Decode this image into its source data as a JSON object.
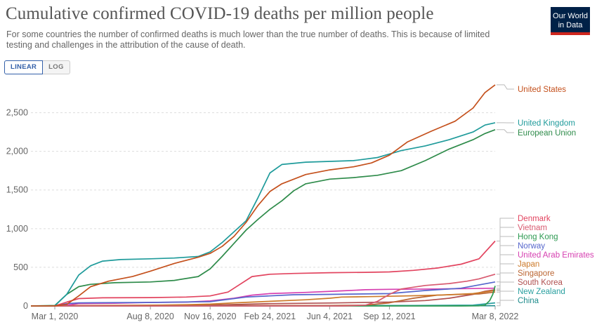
{
  "header": {
    "title": "Cumulative confirmed COVID-19 deaths per million people",
    "subtitle": "For some countries the number of confirmed deaths is much lower than the true number of deaths. This is because of limited testing and challenges in the attribution of the cause of death.",
    "logo_line1": "Our World",
    "logo_line2": "in Data"
  },
  "controls": {
    "linear_label": "LINEAR",
    "log_label": "LOG",
    "selected": "LINEAR"
  },
  "colors": {
    "United States": "#c4501c",
    "United Kingdom": "#1f9b9b",
    "European Union": "#2e8b4a",
    "Denmark": "#e2445f",
    "Vietnam": "#d85a70",
    "Hong Kong": "#2e9a52",
    "Norway": "#5566cc",
    "United Arab Emirates": "#d63fb0",
    "Japan": "#cc7a2a",
    "Singapore": "#bb6633",
    "South Korea": "#b05050",
    "New Zealand": "#2aa0a0",
    "China": "#1e8c8c"
  },
  "chart_data": {
    "type": "line",
    "title": "Cumulative confirmed COVID-19 deaths per million people",
    "xlabel": "",
    "ylabel": "",
    "x_ticks": [
      "Mar 1, 2020",
      "Aug 8, 2020",
      "Nov 16, 2020",
      "Feb 24, 2021",
      "Jun 4, 2021",
      "Sep 12, 2021",
      "Mar 8, 2022"
    ],
    "x_tick_days": [
      0,
      160,
      260,
      360,
      460,
      560,
      737
    ],
    "x_range_days": [
      -40,
      737
    ],
    "y_ticks": [
      0,
      500,
      1000,
      1500,
      2000,
      2500
    ],
    "y_tick_labels": [
      "0",
      "500",
      "1,000",
      "1,500",
      "2,000",
      "2,500"
    ],
    "ylim": [
      0,
      2950
    ],
    "series": [
      {
        "name": "United States",
        "points": [
          [
            -40,
            0
          ],
          [
            0,
            1
          ],
          [
            20,
            20
          ],
          [
            40,
            130
          ],
          [
            60,
            250
          ],
          [
            90,
            320
          ],
          [
            130,
            380
          ],
          [
            160,
            450
          ],
          [
            200,
            550
          ],
          [
            240,
            630
          ],
          [
            260,
            680
          ],
          [
            280,
            770
          ],
          [
            300,
            900
          ],
          [
            320,
            1080
          ],
          [
            340,
            1300
          ],
          [
            360,
            1480
          ],
          [
            380,
            1580
          ],
          [
            420,
            1700
          ],
          [
            460,
            1760
          ],
          [
            500,
            1800
          ],
          [
            530,
            1850
          ],
          [
            560,
            1950
          ],
          [
            590,
            2120
          ],
          [
            630,
            2260
          ],
          [
            670,
            2390
          ],
          [
            700,
            2560
          ],
          [
            720,
            2760
          ],
          [
            737,
            2860
          ]
        ]
      },
      {
        "name": "United Kingdom",
        "points": [
          [
            -40,
            0
          ],
          [
            0,
            2
          ],
          [
            20,
            150
          ],
          [
            40,
            400
          ],
          [
            60,
            520
          ],
          [
            80,
            580
          ],
          [
            110,
            600
          ],
          [
            160,
            610
          ],
          [
            200,
            620
          ],
          [
            240,
            640
          ],
          [
            260,
            700
          ],
          [
            280,
            820
          ],
          [
            300,
            960
          ],
          [
            320,
            1100
          ],
          [
            340,
            1400
          ],
          [
            360,
            1720
          ],
          [
            380,
            1830
          ],
          [
            420,
            1860
          ],
          [
            460,
            1870
          ],
          [
            500,
            1880
          ],
          [
            540,
            1920
          ],
          [
            580,
            2010
          ],
          [
            620,
            2070
          ],
          [
            660,
            2150
          ],
          [
            700,
            2250
          ],
          [
            720,
            2340
          ],
          [
            737,
            2370
          ]
        ]
      },
      {
        "name": "European Union",
        "points": [
          [
            -40,
            0
          ],
          [
            0,
            5
          ],
          [
            20,
            150
          ],
          [
            40,
            250
          ],
          [
            60,
            280
          ],
          [
            100,
            300
          ],
          [
            160,
            310
          ],
          [
            200,
            330
          ],
          [
            240,
            380
          ],
          [
            260,
            480
          ],
          [
            280,
            640
          ],
          [
            300,
            810
          ],
          [
            320,
            980
          ],
          [
            340,
            1120
          ],
          [
            360,
            1250
          ],
          [
            380,
            1360
          ],
          [
            400,
            1490
          ],
          [
            420,
            1580
          ],
          [
            460,
            1640
          ],
          [
            500,
            1660
          ],
          [
            540,
            1690
          ],
          [
            580,
            1750
          ],
          [
            620,
            1880
          ],
          [
            660,
            2030
          ],
          [
            700,
            2150
          ],
          [
            720,
            2230
          ],
          [
            737,
            2280
          ]
        ]
      },
      {
        "name": "Denmark",
        "points": [
          [
            -40,
            0
          ],
          [
            0,
            1
          ],
          [
            20,
            50
          ],
          [
            40,
            95
          ],
          [
            80,
            105
          ],
          [
            160,
            108
          ],
          [
            220,
            115
          ],
          [
            260,
            130
          ],
          [
            290,
            180
          ],
          [
            310,
            280
          ],
          [
            330,
            380
          ],
          [
            360,
            410
          ],
          [
            400,
            420
          ],
          [
            460,
            430
          ],
          [
            520,
            435
          ],
          [
            560,
            440
          ],
          [
            600,
            460
          ],
          [
            640,
            490
          ],
          [
            680,
            540
          ],
          [
            710,
            610
          ],
          [
            737,
            840
          ]
        ]
      },
      {
        "name": "Vietnam",
        "points": [
          [
            -40,
            0
          ],
          [
            0,
            0
          ],
          [
            480,
            0
          ],
          [
            520,
            10
          ],
          [
            540,
            60
          ],
          [
            560,
            150
          ],
          [
            580,
            220
          ],
          [
            620,
            265
          ],
          [
            660,
            290
          ],
          [
            690,
            320
          ],
          [
            710,
            350
          ],
          [
            737,
            410
          ]
        ]
      },
      {
        "name": "Hong Kong",
        "points": [
          [
            -40,
            0
          ],
          [
            680,
            0
          ],
          [
            710,
            2
          ],
          [
            720,
            10
          ],
          [
            728,
            70
          ],
          [
            733,
            150
          ],
          [
            737,
            260
          ]
        ]
      },
      {
        "name": "Norway",
        "points": [
          [
            -40,
            0
          ],
          [
            0,
            0
          ],
          [
            20,
            30
          ],
          [
            40,
            40
          ],
          [
            160,
            45
          ],
          [
            260,
            55
          ],
          [
            320,
            115
          ],
          [
            400,
            145
          ],
          [
            460,
            150
          ],
          [
            560,
            160
          ],
          [
            620,
            200
          ],
          [
            680,
            230
          ],
          [
            737,
            310
          ]
        ]
      },
      {
        "name": "United Arab Emirates",
        "points": [
          [
            -40,
            0
          ],
          [
            0,
            0
          ],
          [
            20,
            10
          ],
          [
            40,
            30
          ],
          [
            100,
            35
          ],
          [
            160,
            45
          ],
          [
            220,
            50
          ],
          [
            260,
            65
          ],
          [
            300,
            100
          ],
          [
            330,
            140
          ],
          [
            360,
            160
          ],
          [
            420,
            175
          ],
          [
            480,
            195
          ],
          [
            520,
            210
          ],
          [
            560,
            215
          ],
          [
            640,
            220
          ],
          [
            700,
            225
          ],
          [
            737,
            230
          ]
        ]
      },
      {
        "name": "Japan",
        "points": [
          [
            -40,
            0
          ],
          [
            0,
            0
          ],
          [
            30,
            5
          ],
          [
            120,
            8
          ],
          [
            180,
            12
          ],
          [
            220,
            16
          ],
          [
            260,
            24
          ],
          [
            300,
            40
          ],
          [
            360,
            60
          ],
          [
            420,
            80
          ],
          [
            460,
            100
          ],
          [
            480,
            115
          ],
          [
            520,
            120
          ],
          [
            560,
            125
          ],
          [
            620,
            135
          ],
          [
            660,
            145
          ],
          [
            700,
            160
          ],
          [
            737,
            200
          ]
        ]
      },
      {
        "name": "Singapore",
        "points": [
          [
            -40,
            0
          ],
          [
            0,
            0
          ],
          [
            60,
            4
          ],
          [
            460,
            6
          ],
          [
            520,
            10
          ],
          [
            560,
            40
          ],
          [
            600,
            100
          ],
          [
            640,
            140
          ],
          [
            680,
            150
          ],
          [
            710,
            155
          ],
          [
            737,
            180
          ]
        ]
      },
      {
        "name": "South Korea",
        "points": [
          [
            -40,
            0
          ],
          [
            0,
            0
          ],
          [
            20,
            3
          ],
          [
            60,
            5
          ],
          [
            200,
            7
          ],
          [
            280,
            15
          ],
          [
            360,
            30
          ],
          [
            460,
            38
          ],
          [
            560,
            50
          ],
          [
            620,
            70
          ],
          [
            660,
            100
          ],
          [
            700,
            150
          ],
          [
            720,
            190
          ],
          [
            737,
            210
          ]
        ]
      },
      {
        "name": "New Zealand",
        "points": [
          [
            -40,
            0
          ],
          [
            0,
            0
          ],
          [
            30,
            4
          ],
          [
            200,
            5
          ],
          [
            600,
            6
          ],
          [
            700,
            10
          ],
          [
            737,
            40
          ]
        ]
      },
      {
        "name": "China",
        "points": [
          [
            -40,
            0
          ],
          [
            -20,
            1
          ],
          [
            0,
            2
          ],
          [
            100,
            3
          ],
          [
            737,
            3
          ]
        ]
      }
    ],
    "legend_labels": [
      {
        "name": "United States",
        "text": "United States"
      },
      {
        "name": "United Kingdom",
        "text": "United Kingdom"
      },
      {
        "name": "European Union",
        "text": "European Union"
      },
      {
        "name": "Denmark",
        "text": "Denmark"
      },
      {
        "name": "Vietnam",
        "text": "Vietnam"
      },
      {
        "name": "Hong Kong",
        "text": "Hong Kong"
      },
      {
        "name": "Norway",
        "text": "Norway"
      },
      {
        "name": "United Arab Emirates",
        "text": "United Arab Emirates"
      },
      {
        "name": "Japan",
        "text": "Japan"
      },
      {
        "name": "Singapore",
        "text": "Singapore"
      },
      {
        "name": "South Korea",
        "text": "South Korea"
      },
      {
        "name": "New Zealand",
        "text": "New Zealand"
      },
      {
        "name": "China",
        "text": "China"
      }
    ],
    "legend_position": "right",
    "grid": "horizontal dashed"
  }
}
